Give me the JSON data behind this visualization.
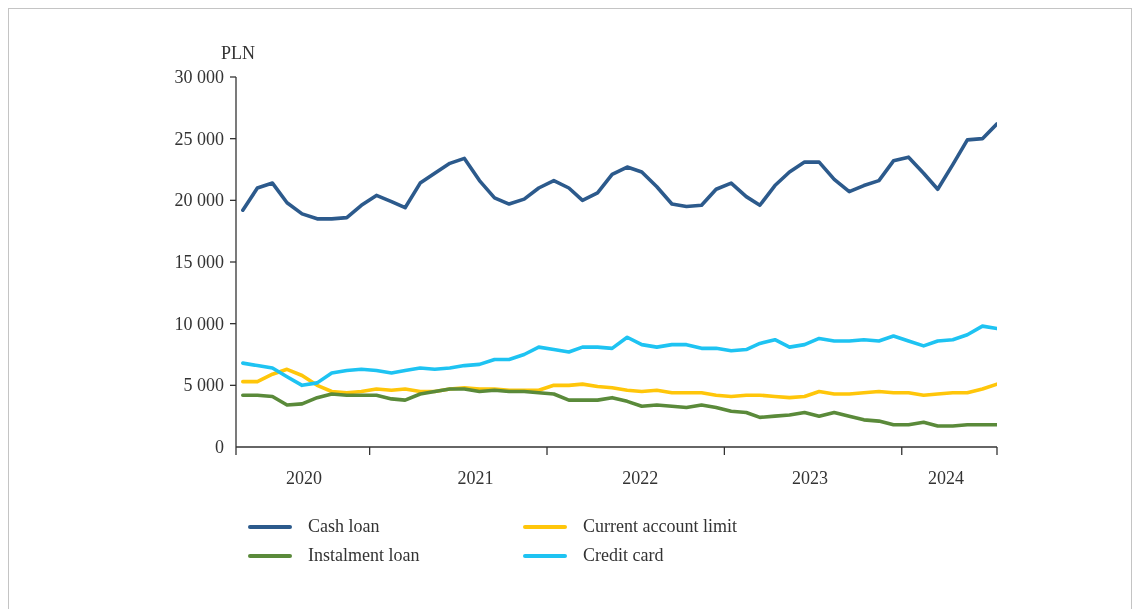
{
  "chart_data": {
    "type": "line",
    "ylabel": "PLN",
    "x": [
      "2020-04-15",
      "2020-05-15",
      "2020-06-15",
      "2020-07-15",
      "2020-08-15",
      "2020-09-15",
      "2020-10-15",
      "2020-11-15",
      "2020-12-15",
      "2021-01-15",
      "2021-02-15",
      "2021-03-15",
      "2021-04-15",
      "2021-05-15",
      "2021-06-15",
      "2021-07-15",
      "2021-08-15",
      "2021-09-15",
      "2021-10-15",
      "2021-11-15",
      "2021-12-15",
      "2022-01-15",
      "2022-02-15",
      "2022-03-15",
      "2022-04-15",
      "2022-05-15",
      "2022-06-15",
      "2022-07-15",
      "2022-08-15",
      "2022-09-15",
      "2022-10-15",
      "2022-11-15",
      "2022-12-15",
      "2023-01-15",
      "2023-02-15",
      "2023-03-15",
      "2023-04-15",
      "2023-05-15",
      "2023-06-15",
      "2023-07-15",
      "2023-08-15",
      "2023-09-15",
      "2023-10-15",
      "2023-11-15",
      "2023-12-15",
      "2024-01-15",
      "2024-02-15",
      "2024-03-15",
      "2024-04-15",
      "2024-05-15",
      "2024-06-15",
      "2024-07-15"
    ],
    "series": [
      {
        "name": "Cash loan",
        "color": "#2c5a8c",
        "values": [
          19200,
          21000,
          21400,
          19800,
          18900,
          18500,
          18500,
          18600,
          19600,
          20400,
          19900,
          19400,
          21400,
          22200,
          23000,
          23400,
          21600,
          20200,
          19700,
          20100,
          21000,
          21600,
          21000,
          20000,
          20600,
          22100,
          22700,
          22300,
          21100,
          19700,
          19500,
          19600,
          20900,
          21400,
          20300,
          19600,
          21200,
          22300,
          23100,
          23100,
          21700,
          20700,
          21200,
          21600,
          23200,
          23500,
          22200,
          20900,
          22900,
          24900,
          25000,
          26200
        ]
      },
      {
        "name": "Current account limit",
        "color": "#ffc60a",
        "values": [
          5300,
          5300,
          5900,
          6300,
          5800,
          5000,
          4500,
          4400,
          4500,
          4700,
          4600,
          4700,
          4500,
          4500,
          4700,
          4800,
          4700,
          4700,
          4600,
          4600,
          4600,
          5000,
          5000,
          5100,
          4900,
          4800,
          4600,
          4500,
          4600,
          4400,
          4400,
          4400,
          4200,
          4100,
          4200,
          4200,
          4100,
          4000,
          4100,
          4500,
          4300,
          4300,
          4400,
          4500,
          4400,
          4400,
          4200,
          4300,
          4400,
          4400,
          4700,
          5100
        ]
      },
      {
        "name": "Instalment loan",
        "color": "#5a8a3a",
        "values": [
          4200,
          4200,
          4100,
          3400,
          3500,
          4000,
          4300,
          4200,
          4200,
          4200,
          3900,
          3800,
          4300,
          4500,
          4700,
          4700,
          4500,
          4600,
          4500,
          4500,
          4400,
          4300,
          3800,
          3800,
          3800,
          4000,
          3700,
          3300,
          3400,
          3300,
          3200,
          3400,
          3200,
          2900,
          2800,
          2400,
          2500,
          2600,
          2800,
          2500,
          2800,
          2500,
          2200,
          2100,
          1800,
          1800,
          2000,
          1700,
          1700,
          1800,
          1800,
          1800
        ]
      },
      {
        "name": "Credit card",
        "color": "#1ec3f2",
        "values": [
          6800,
          6600,
          6400,
          5700,
          5000,
          5200,
          6000,
          6200,
          6300,
          6200,
          6000,
          6200,
          6400,
          6300,
          6400,
          6600,
          6700,
          7100,
          7100,
          7500,
          8100,
          7900,
          7700,
          8100,
          8100,
          8000,
          8900,
          8300,
          8100,
          8300,
          8300,
          8000,
          8000,
          7800,
          7900,
          8400,
          8700,
          8100,
          8300,
          8800,
          8600,
          8600,
          8700,
          8600,
          9000,
          8600,
          8200,
          8600,
          8700,
          9100,
          9800,
          9600
        ]
      }
    ],
    "xlim": [
      "2020-04-01",
      "2024-07-15"
    ],
    "xticks": [
      {
        "value": "2020-04-01",
        "label": null
      },
      {
        "value": "2020-08-19",
        "label": "2020"
      },
      {
        "value": "2021-01-01",
        "label": null
      },
      {
        "value": "2021-08-07",
        "label": "2021"
      },
      {
        "value": "2022-01-01",
        "label": null
      },
      {
        "value": "2022-07-12",
        "label": "2022"
      },
      {
        "value": "2023-01-01",
        "label": null
      },
      {
        "value": "2023-06-26",
        "label": "2023"
      },
      {
        "value": "2024-01-01",
        "label": null
      },
      {
        "value": "2024-04-01",
        "label": "2024"
      },
      {
        "value": "2024-07-15",
        "label": null
      }
    ],
    "ylim": [
      0,
      30000
    ],
    "yticks": [
      0,
      {
        "value": 5000,
        "label": "5 000"
      },
      {
        "value": 10000,
        "label": "10 000"
      },
      {
        "value": 15000,
        "label": "15 000"
      },
      {
        "value": 20000,
        "label": "20 000"
      },
      {
        "value": 25000,
        "label": "25 000"
      },
      {
        "value": 30000,
        "label": "30 000"
      }
    ],
    "legend": "bottom"
  }
}
